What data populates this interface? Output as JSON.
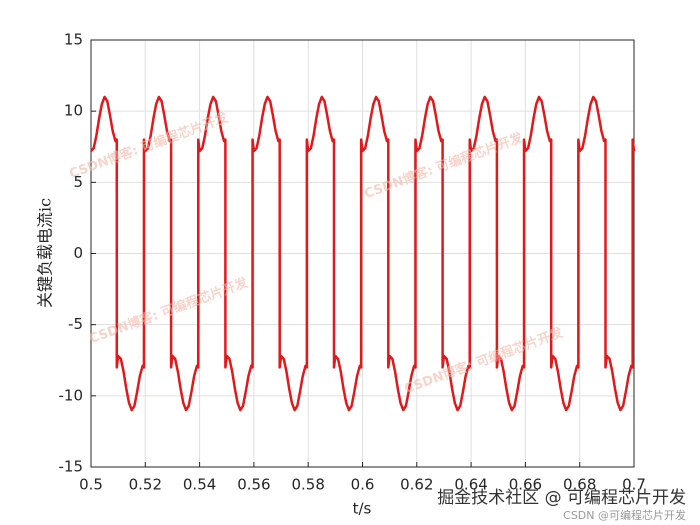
{
  "chart_data": {
    "type": "line",
    "xlabel": "t/s",
    "ylabel": "关键负载电流ic",
    "xlim": [
      0.5,
      0.7
    ],
    "ylim": [
      -15,
      15
    ],
    "xticks": [
      0.5,
      0.52,
      0.54,
      0.56,
      0.58,
      0.6,
      0.62,
      0.64,
      0.66,
      0.68,
      0.7
    ],
    "yticks": [
      -15,
      -10,
      -5,
      0,
      5,
      10,
      15
    ],
    "grid": true,
    "color": "#e0191b",
    "watermarks": [
      "CSDN博客: 可编程芯片开发",
      "掘金技术社区 @ 可编程芯片开发",
      "CSDN @可编程芯片开发"
    ],
    "x": [
      0.5,
      0.501,
      0.502,
      0.503,
      0.504,
      0.505,
      0.506,
      0.507,
      0.508,
      0.509,
      0.5095,
      0.5095,
      0.51,
      0.511,
      0.512,
      0.513,
      0.514,
      0.515,
      0.516,
      0.517,
      0.518,
      0.519,
      0.5195,
      0.5195,
      0.52,
      0.521,
      0.522,
      0.523,
      0.524,
      0.525,
      0.526,
      0.527,
      0.528,
      0.529,
      0.5295,
      0.5295,
      0.53,
      0.531,
      0.532,
      0.533,
      0.534,
      0.535,
      0.536,
      0.537,
      0.538,
      0.539,
      0.5395,
      0.5395,
      0.54,
      0.541,
      0.542,
      0.543,
      0.544,
      0.545,
      0.546,
      0.547,
      0.548,
      0.549,
      0.5495,
      0.5495,
      0.55,
      0.551,
      0.552,
      0.553,
      0.554,
      0.555,
      0.556,
      0.557,
      0.558,
      0.559,
      0.5595,
      0.5595,
      0.56,
      0.561,
      0.562,
      0.563,
      0.564,
      0.565,
      0.566,
      0.567,
      0.568,
      0.569,
      0.5695,
      0.5695,
      0.57,
      0.571,
      0.572,
      0.573,
      0.574,
      0.575,
      0.576,
      0.577,
      0.578,
      0.579,
      0.5795,
      0.5795,
      0.58,
      0.581,
      0.582,
      0.583,
      0.584,
      0.585,
      0.586,
      0.587,
      0.588,
      0.589,
      0.5895,
      0.5895,
      0.59,
      0.591,
      0.592,
      0.593,
      0.594,
      0.595,
      0.596,
      0.597,
      0.598,
      0.599,
      0.5995,
      0.5995,
      0.6,
      0.601,
      0.602,
      0.603,
      0.604,
      0.605,
      0.606,
      0.607,
      0.608,
      0.609,
      0.6095,
      0.6095,
      0.61,
      0.611,
      0.612,
      0.613,
      0.614,
      0.615,
      0.616,
      0.617,
      0.618,
      0.619,
      0.6195,
      0.6195,
      0.62,
      0.621,
      0.622,
      0.623,
      0.624,
      0.625,
      0.626,
      0.627,
      0.628,
      0.629,
      0.6295,
      0.6295,
      0.63,
      0.631,
      0.632,
      0.633,
      0.634,
      0.635,
      0.636,
      0.637,
      0.638,
      0.639,
      0.6395,
      0.6395,
      0.64,
      0.641,
      0.642,
      0.643,
      0.644,
      0.645,
      0.646,
      0.647,
      0.648,
      0.649,
      0.6495,
      0.6495,
      0.65,
      0.651,
      0.652,
      0.653,
      0.654,
      0.655,
      0.656,
      0.657,
      0.658,
      0.659,
      0.6595,
      0.6595,
      0.66,
      0.661,
      0.662,
      0.663,
      0.664,
      0.665,
      0.666,
      0.667,
      0.668,
      0.669,
      0.6695,
      0.6695,
      0.67,
      0.671,
      0.672,
      0.673,
      0.674,
      0.675,
      0.676,
      0.677,
      0.678,
      0.679,
      0.6795,
      0.6795,
      0.68,
      0.681,
      0.682,
      0.683,
      0.684,
      0.685,
      0.686,
      0.687,
      0.688,
      0.689,
      0.6895,
      0.6895,
      0.69,
      0.691,
      0.692,
      0.693,
      0.694,
      0.695,
      0.696,
      0.697,
      0.698,
      0.699,
      0.6995,
      0.6995,
      0.7
    ],
    "values": [
      7.2,
      7.4,
      8.3,
      9.5,
      10.5,
      11.0,
      10.7,
      9.7,
      8.6,
      7.9,
      8.0,
      -8.0,
      -7.2,
      -7.4,
      -8.3,
      -9.5,
      -10.5,
      -11.0,
      -10.7,
      -9.7,
      -8.6,
      -7.9,
      -8.0,
      8.0,
      7.2,
      7.4,
      8.3,
      9.5,
      10.5,
      11.0,
      10.7,
      9.7,
      8.6,
      7.9,
      8.0,
      -8.0,
      -7.2,
      -7.4,
      -8.3,
      -9.5,
      -10.5,
      -11.0,
      -10.7,
      -9.7,
      -8.6,
      -7.9,
      -8.0,
      8.0,
      7.2,
      7.4,
      8.3,
      9.5,
      10.5,
      11.0,
      10.7,
      9.7,
      8.6,
      7.9,
      8.0,
      -8.0,
      -7.2,
      -7.4,
      -8.3,
      -9.5,
      -10.5,
      -11.0,
      -10.7,
      -9.7,
      -8.6,
      -7.9,
      -8.0,
      8.0,
      7.2,
      7.4,
      8.3,
      9.5,
      10.5,
      11.0,
      10.7,
      9.7,
      8.6,
      7.9,
      8.0,
      -8.0,
      -7.2,
      -7.4,
      -8.3,
      -9.5,
      -10.5,
      -11.0,
      -10.7,
      -9.7,
      -8.6,
      -7.9,
      -8.0,
      8.0,
      7.2,
      7.4,
      8.3,
      9.5,
      10.5,
      11.0,
      10.7,
      9.7,
      8.6,
      7.9,
      8.0,
      -8.0,
      -7.2,
      -7.4,
      -8.3,
      -9.5,
      -10.5,
      -11.0,
      -10.7,
      -9.7,
      -8.6,
      -7.9,
      -8.0,
      8.0,
      7.2,
      7.4,
      8.3,
      9.5,
      10.5,
      11.0,
      10.7,
      9.7,
      8.6,
      7.9,
      8.0,
      -8.0,
      -7.2,
      -7.4,
      -8.3,
      -9.5,
      -10.5,
      -11.0,
      -10.7,
      -9.7,
      -8.6,
      -7.9,
      -8.0,
      8.0,
      7.2,
      7.4,
      8.3,
      9.5,
      10.5,
      11.0,
      10.7,
      9.7,
      8.6,
      7.9,
      8.0,
      -8.0,
      -7.2,
      -7.4,
      -8.3,
      -9.5,
      -10.5,
      -11.0,
      -10.7,
      -9.7,
      -8.6,
      -7.9,
      -8.0,
      8.0,
      7.2,
      7.4,
      8.3,
      9.5,
      10.5,
      11.0,
      10.7,
      9.7,
      8.6,
      7.9,
      8.0,
      -8.0,
      -7.2,
      -7.4,
      -8.3,
      -9.5,
      -10.5,
      -11.0,
      -10.7,
      -9.7,
      -8.6,
      -7.9,
      -8.0,
      8.0,
      7.2,
      7.4,
      8.3,
      9.5,
      10.5,
      11.0,
      10.7,
      9.7,
      8.6,
      7.9,
      8.0,
      -8.0,
      -7.2,
      -7.4,
      -8.3,
      -9.5,
      -10.5,
      -11.0,
      -10.7,
      -9.7,
      -8.6,
      -7.9,
      -8.0,
      8.0,
      7.2,
      7.4,
      8.3,
      9.5,
      10.5,
      11.0,
      10.7,
      9.7,
      8.6,
      7.9,
      8.0,
      -8.0,
      -7.2,
      -7.4,
      -8.3,
      -9.5,
      -10.5,
      -11.0,
      -10.7,
      -9.7,
      -8.6,
      -7.9,
      -8.0,
      8.0,
      7.2
    ]
  }
}
